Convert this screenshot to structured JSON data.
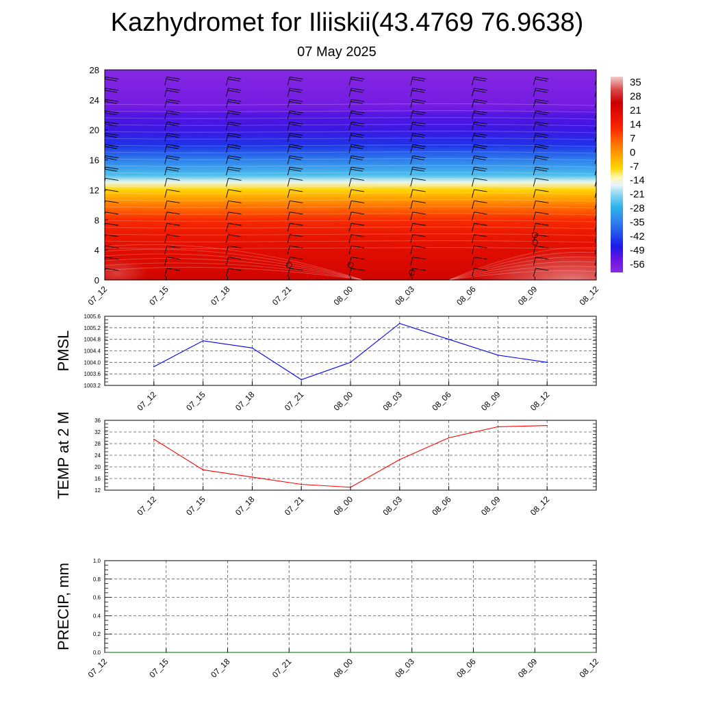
{
  "title": "Kazhydromet for Iliiskii(43.4769 76.9638)",
  "subtitle": "07 May 2025",
  "chart_data": [
    {
      "type": "heatmap",
      "panel": "cross-section",
      "x_ticks": [
        "07_12",
        "07_15",
        "07_18",
        "07_21",
        "08_00",
        "08_03",
        "08_06",
        "08_09",
        "08_12"
      ],
      "y_ticks": [
        "0",
        "4",
        "8",
        "12",
        "16",
        "20",
        "24",
        "28"
      ],
      "ylim": [
        0,
        28
      ],
      "colorbar_labels": [
        "35",
        "28",
        "21",
        "14",
        "7",
        "0",
        "-7",
        "-14",
        "-21",
        "-28",
        "-35",
        "-42",
        "-49",
        "-56"
      ],
      "colorbar_range": [
        -63,
        42
      ],
      "colorbar_stops": [
        {
          "v": -63,
          "c": "#8a2be2"
        },
        {
          "v": -56,
          "c": "#6a14e0"
        },
        {
          "v": -49,
          "c": "#1a1ae6"
        },
        {
          "v": -42,
          "c": "#2455ea"
        },
        {
          "v": -35,
          "c": "#2f86ec"
        },
        {
          "v": -28,
          "c": "#2eb3ea"
        },
        {
          "v": -21,
          "c": "#8ed6f2"
        },
        {
          "v": -16,
          "c": "#e8f6fb"
        },
        {
          "v": -12,
          "c": "#fff7b0"
        },
        {
          "v": -7,
          "c": "#ffd400"
        },
        {
          "v": 0,
          "c": "#ffa200"
        },
        {
          "v": 7,
          "c": "#ff6a00"
        },
        {
          "v": 14,
          "c": "#f72a00"
        },
        {
          "v": 21,
          "c": "#e50f00"
        },
        {
          "v": 28,
          "c": "#c80000"
        },
        {
          "v": 35,
          "c": "#d84848"
        },
        {
          "v": 42,
          "c": "#f2cccc"
        }
      ],
      "profile": [
        {
          "h": 0,
          "t": 26
        },
        {
          "h": 2,
          "t": 24
        },
        {
          "h": 4,
          "t": 22
        },
        {
          "h": 6,
          "t": 19
        },
        {
          "h": 8,
          "t": 14
        },
        {
          "h": 10,
          "t": 5
        },
        {
          "h": 12,
          "t": -7
        },
        {
          "h": 13,
          "t": -15
        },
        {
          "h": 14,
          "t": -26
        },
        {
          "h": 16,
          "t": -36
        },
        {
          "h": 18,
          "t": -46
        },
        {
          "h": 20,
          "t": -52
        },
        {
          "h": 22,
          "t": -54
        },
        {
          "h": 23,
          "t": -58
        },
        {
          "h": 28,
          "t": -62
        }
      ]
    },
    {
      "type": "line",
      "ylabel": "PMSL",
      "color": "#0000ff",
      "x": [
        "07_12",
        "07_15",
        "07_18",
        "07_21",
        "08_00",
        "08_03",
        "08_06",
        "08_09",
        "08_12"
      ],
      "y": [
        1003.85,
        1004.75,
        1004.5,
        1003.4,
        1004.0,
        1005.35,
        1004.8,
        1004.25,
        1004.0
      ],
      "ylim": [
        1003.2,
        1005.6
      ],
      "y_ticks": [
        "1003.2",
        "1003.6",
        "1004.0",
        "1004.4",
        "1004.8",
        "1005.2",
        "1005.6"
      ],
      "grid": true
    },
    {
      "type": "line",
      "ylabel": "TEMP at 2 M",
      "color": "#ff0000",
      "x": [
        "07_12",
        "07_15",
        "07_18",
        "07_21",
        "08_00",
        "08_03",
        "08_06",
        "08_09",
        "08_12"
      ],
      "y": [
        29.5,
        19.0,
        16.5,
        14.0,
        13.0,
        22.5,
        30.0,
        33.8,
        34.2
      ],
      "ylim": [
        12,
        36
      ],
      "y_ticks": [
        "12",
        "16",
        "20",
        "24",
        "28",
        "32",
        "36"
      ],
      "grid": true
    },
    {
      "type": "line",
      "ylabel": "PRECIP, mm",
      "color": "#006400",
      "x": [
        "07_12",
        "07_15",
        "07_18",
        "07_21",
        "08_00",
        "08_03",
        "08_06",
        "08_09",
        "08_12"
      ],
      "y": [
        0,
        0,
        0,
        0,
        0,
        0,
        0,
        0,
        0
      ],
      "ylim": [
        0,
        1
      ],
      "y_ticks": [
        "0.0",
        "0.2",
        "0.4",
        "0.6",
        "0.8",
        "1.0"
      ],
      "grid": true
    }
  ]
}
